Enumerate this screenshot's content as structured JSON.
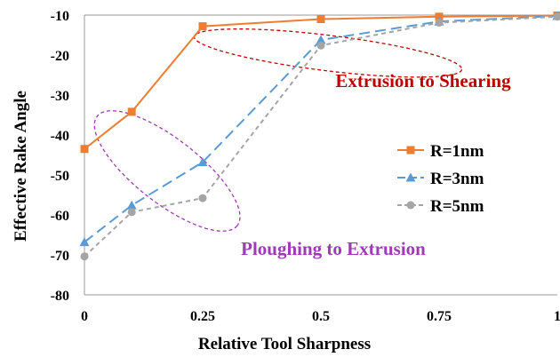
{
  "chart_data": {
    "type": "line",
    "xlabel": "Relative Tool Sharpness",
    "ylabel": "Effective Rake Angle",
    "x": [
      0,
      0.1,
      0.25,
      0.5,
      0.75,
      1
    ],
    "x_ticks": [
      0,
      0.25,
      0.5,
      0.75,
      1
    ],
    "x_tick_labels": [
      "0",
      "0.25",
      "0.5",
      "0.75",
      "1"
    ],
    "xlim": [
      0,
      1
    ],
    "ylim": [
      -80,
      -10
    ],
    "y_ticks": [
      -80,
      -70,
      -60,
      -50,
      -40,
      -30,
      -20,
      -10
    ],
    "y_tick_labels": [
      "-80",
      "-70",
      "-60",
      "-50",
      "-40",
      "-30",
      "-20",
      "-10"
    ],
    "grid": false,
    "legend_position": "right",
    "series": [
      {
        "name": "R=1nm",
        "color": "#ED7D31",
        "marker": "square",
        "dash": "solid",
        "values": [
          -43.5,
          -34.2,
          -12.8,
          -11.0,
          -10.4,
          -10.1
        ]
      },
      {
        "name": "R=3nm",
        "color": "#5B9BD5",
        "marker": "triangle",
        "dash": "long-dash",
        "values": [
          -66.8,
          -57.6,
          -46.8,
          -16.2,
          -11.6,
          -10.2
        ]
      },
      {
        "name": "R=5nm",
        "color": "#A5A5A5",
        "marker": "circle",
        "dash": "short-dash",
        "values": [
          -70.4,
          -59.3,
          -55.8,
          -17.6,
          -11.9,
          -10.4
        ]
      }
    ],
    "annotations": [
      {
        "text": "Extrusion to Shearing",
        "color": "#C00000"
      },
      {
        "text": "Ploughing to Extrusion",
        "color": "#9E3AB5"
      }
    ]
  }
}
